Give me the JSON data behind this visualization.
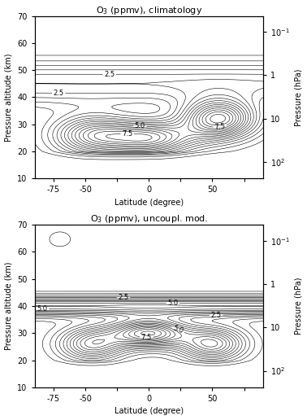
{
  "title1": "O$_3$ (ppmv), climatology",
  "title2": "O$_3$ (ppmv), uncoupl. mod.",
  "xlabel": "Latitude (degree)",
  "ylabel_left": "Pressure altitude (km)",
  "ylabel_right": "Pressure (hPa)",
  "contour_levels": [
    0.5,
    1.0,
    1.5,
    2.0,
    2.5,
    3.0,
    3.5,
    4.0,
    4.5,
    5.0,
    5.5,
    6.0,
    6.5,
    7.0,
    7.5,
    8.0,
    8.5,
    9.0,
    9.5,
    10.0
  ],
  "label_levels1": [
    2.5,
    5.0,
    7.5
  ],
  "label_levels2": [
    2.5,
    5.0,
    7.5
  ],
  "background_color": "#ffffff",
  "contour_color": "#000000",
  "fontsize_title": 8,
  "fontsize_label": 7,
  "fontsize_tick": 7,
  "xticks": [
    -75,
    -50,
    -25,
    0,
    25,
    50,
    75
  ],
  "xticklabels": [
    "-75",
    "-50",
    "",
    "0",
    "",
    "50",
    ""
  ],
  "yticks": [
    10,
    20,
    30,
    40,
    50,
    60,
    70
  ],
  "yticklabels": [
    "10",
    "20",
    "30",
    "40",
    "50",
    "60",
    "70"
  ],
  "pressure_alts": [
    64.5,
    48.0,
    32.0,
    16.0
  ],
  "pressure_labels": [
    "10$^{-1}$",
    "1",
    "10",
    "10$^2$"
  ]
}
